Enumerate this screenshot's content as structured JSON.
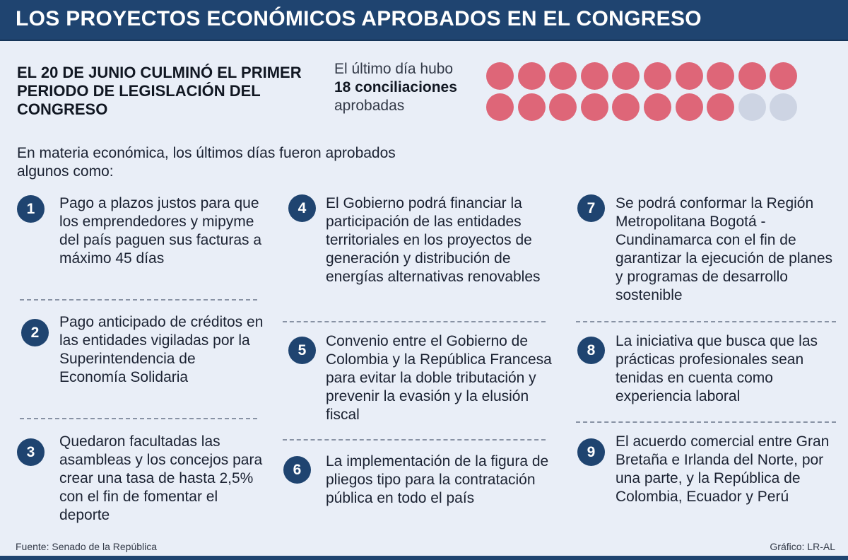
{
  "title": "LOS PROYECTOS ECONÓMICOS APROBADOS EN EL CONGRESO",
  "subtitle": "EL 20 DE JUNIO CULMINÓ EL PRIMER PERIODO DE LEGISLACIÓN DEL CONGRESO",
  "conciliations": {
    "line1": "El último día hubo",
    "line2": "18 conciliaciones",
    "line3": "aprobadas",
    "approved_count": 18,
    "total_dots": 20,
    "colors": {
      "approved": "#de6678",
      "remaining": "#cdd4e3"
    }
  },
  "intro": "En materia económica, los últimos días fueron aprobados algunos como:",
  "items": [
    {
      "num": "1",
      "text": "Pago a plazos justos para que los emprendedores y mipyme del país paguen sus facturas a máximo 45 días"
    },
    {
      "num": "2",
      "text": "Pago anticipado de créditos en las entidades vigiladas por la Superintendencia de Economía Solidaria"
    },
    {
      "num": "3",
      "text": "Quedaron facultadas las asambleas y los concejos para crear una tasa de hasta 2,5% con el fin de fomentar el deporte"
    },
    {
      "num": "4",
      "text": "El Gobierno podrá financiar la participación de las entidades territoriales en los proyectos de generación y distribución de energías alternativas renovables"
    },
    {
      "num": "5",
      "text": "Convenio entre el Gobierno de Colombia y la República Francesa para evitar la doble tributación y prevenir la evasión y la elusión fiscal"
    },
    {
      "num": "6",
      "text": "La implementación de la figura de pliegos tipo para la contratación pública en todo el país"
    },
    {
      "num": "7",
      "text": "Se podrá conformar la Región Metropolitana Bogotá - Cundinamarca con el fin de garantizar la ejecución de planes y programas de desarrollo sostenible"
    },
    {
      "num": "8",
      "text": "La iniciativa que busca que las prácticas profesionales sean tenidas en cuenta como experiencia laboral"
    },
    {
      "num": "9",
      "text": "El acuerdo comercial entre Gran Bretaña e Irlanda del Norte, por una parte, y la República de Colombia, Ecuador y Perú"
    }
  ],
  "footer": {
    "source": "Fuente: Senado de la República",
    "credit": "Gráfico: LR-AL"
  },
  "colors": {
    "header": "#1f4470",
    "background": "#e9eef7",
    "accent": "#de6678"
  }
}
